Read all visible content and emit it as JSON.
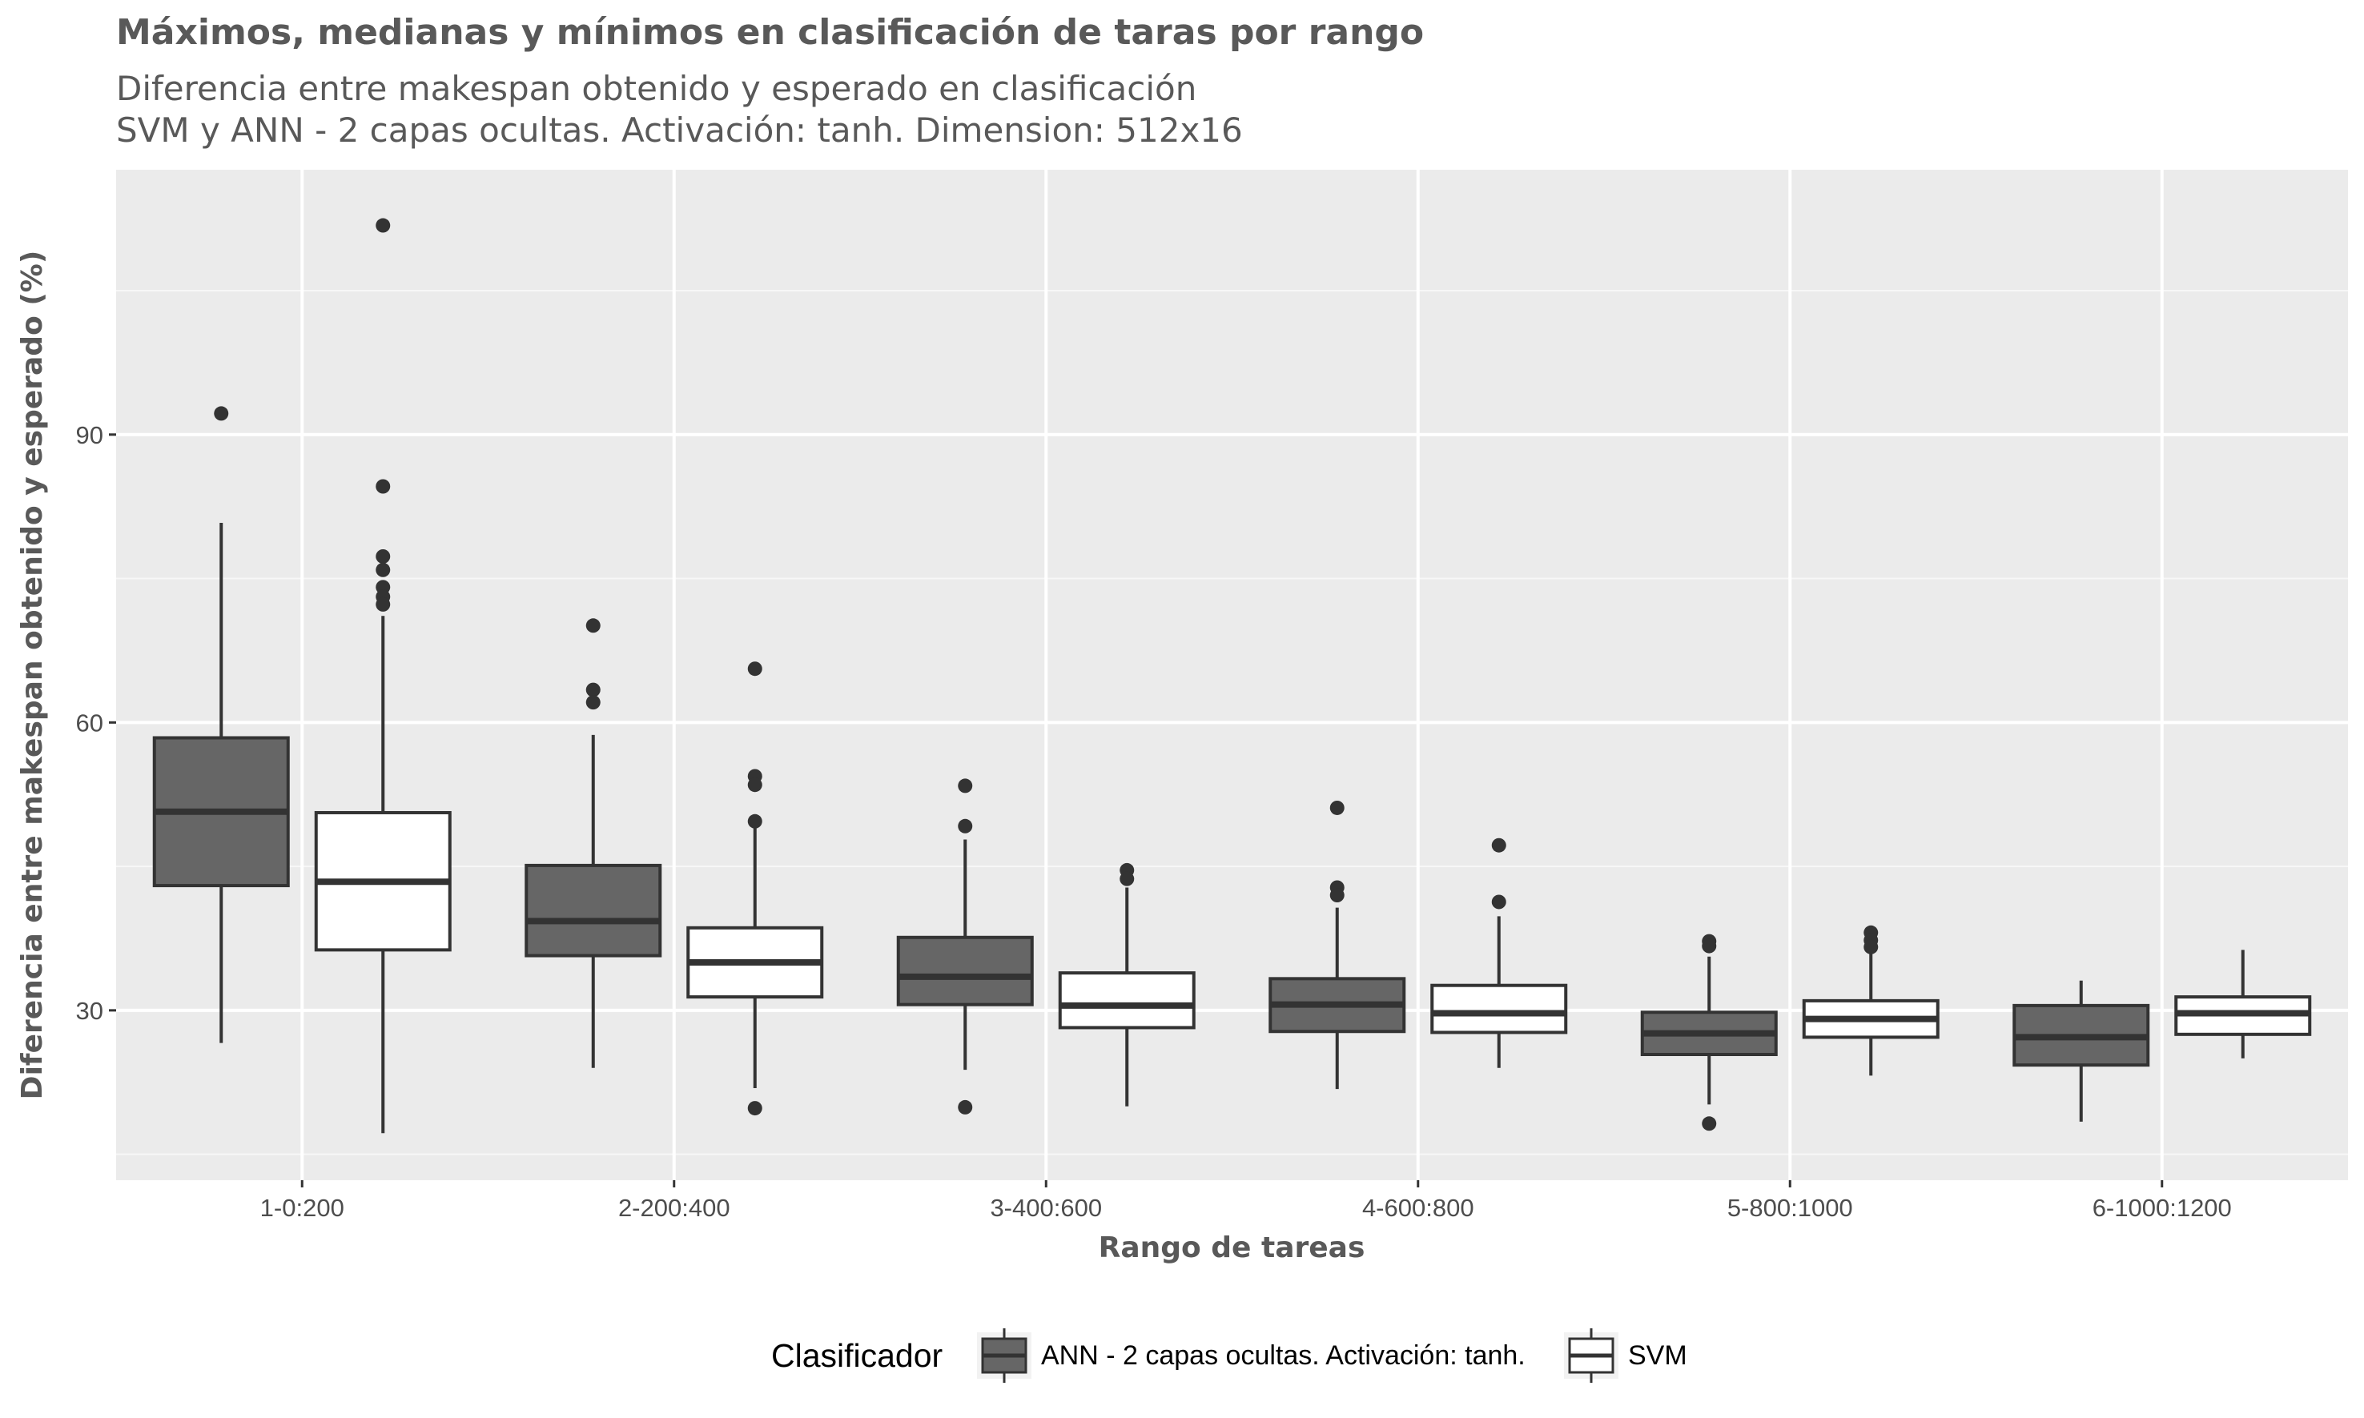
{
  "chart_data": {
    "type": "boxplot",
    "title": "Máximos, medianas y mínimos en clasificación de taras por rango",
    "subtitle_line1": "Diferencia entre makespan obtenido y esperado en clasificación",
    "subtitle_line2": "SVM y ANN - 2 capas ocultas. Activación: tanh. Dimension: 512x16",
    "xlabel": "Rango de tareas",
    "ylabel": "Diferencia entre makespan obtenido y esperado (%)",
    "ylim": [
      12.3,
      117.6
    ],
    "yticks": [
      30,
      60,
      90
    ],
    "grid": true,
    "legend_position": "bottom",
    "legend": {
      "title": "Clasificador",
      "entries": [
        "ANN - 2 capas ocultas. Activación: tanh.",
        "SVM"
      ]
    },
    "categories": [
      "1-0:200",
      "2-200:400",
      "3-400:600",
      "4-600:800",
      "5-800:1000",
      "6-1000:1200"
    ],
    "series": [
      {
        "name": "ANN - 2 capas ocultas. Activación: tanh.",
        "color": "#666666",
        "boxes": [
          {
            "min": 26.6,
            "q1": 43.0,
            "median": 50.7,
            "q3": 58.4,
            "max": 80.8,
            "outliers": [
              92.2
            ]
          },
          {
            "min": 24.0,
            "q1": 35.7,
            "median": 39.3,
            "q3": 45.1,
            "max": 58.7,
            "outliers": [
              70.1,
              63.4,
              62.1
            ]
          },
          {
            "min": 23.8,
            "q1": 30.6,
            "median": 33.5,
            "q3": 37.6,
            "max": 47.8,
            "outliers": [
              53.4,
              49.2,
              19.9
            ]
          },
          {
            "min": 21.8,
            "q1": 27.8,
            "median": 30.6,
            "q3": 33.3,
            "max": 40.7,
            "outliers": [
              51.1,
              42.8,
              42.0
            ]
          },
          {
            "min": 20.2,
            "q1": 25.4,
            "median": 27.6,
            "q3": 29.8,
            "max": 35.6,
            "outliers": [
              37.2,
              36.7,
              18.2
            ]
          },
          {
            "min": 18.4,
            "q1": 24.3,
            "median": 27.2,
            "q3": 30.5,
            "max": 33.1,
            "outliers": []
          }
        ]
      },
      {
        "name": "SVM",
        "color": "#ffffff",
        "boxes": [
          {
            "min": 17.2,
            "q1": 36.3,
            "median": 43.4,
            "q3": 50.6,
            "max": 71.1,
            "outliers": [
              111.8,
              84.6,
              77.3,
              75.9,
              74.1,
              73.1,
              72.3
            ]
          },
          {
            "min": 21.9,
            "q1": 31.4,
            "median": 35.0,
            "q3": 38.6,
            "max": 49.4,
            "outliers": [
              65.6,
              54.4,
              53.5,
              49.7,
              19.8
            ]
          },
          {
            "min": 20.0,
            "q1": 28.2,
            "median": 30.5,
            "q3": 33.9,
            "max": 42.8,
            "outliers": [
              44.6,
              43.7
            ]
          },
          {
            "min": 24.0,
            "q1": 27.7,
            "median": 29.7,
            "q3": 32.6,
            "max": 39.8,
            "outliers": [
              47.2,
              41.3
            ]
          },
          {
            "min": 23.2,
            "q1": 27.2,
            "median": 29.1,
            "q3": 31.0,
            "max": 36.0,
            "outliers": [
              38.1,
              37.3,
              36.6
            ]
          },
          {
            "min": 25.0,
            "q1": 27.5,
            "median": 29.7,
            "q3": 31.4,
            "max": 36.3,
            "outliers": []
          }
        ]
      }
    ]
  }
}
